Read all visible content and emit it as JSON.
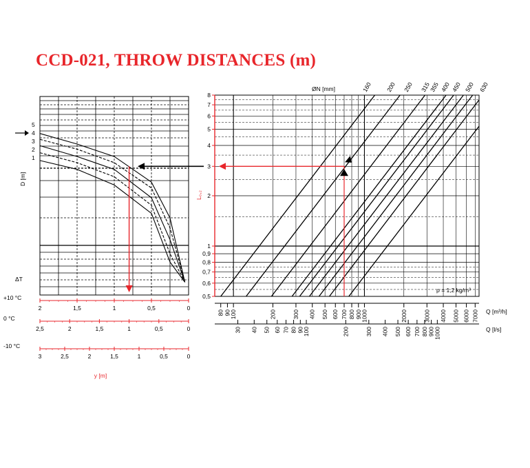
{
  "title": "CCD-021, THROW DISTANCES (m)",
  "colors": {
    "title": "#e8262b",
    "axis_red": "#e8262b",
    "grid": "#000000",
    "curves": "#000000"
  },
  "chart_data": [
    {
      "type": "line",
      "name_key": "left-panel",
      "ylabel": "D [m]",
      "yticks": [
        "5",
        "4",
        "3",
        "2",
        "1"
      ],
      "arrow_marker_y": "4",
      "dT_label": "ΔT",
      "scales": [
        {
          "label": "+10 °C",
          "ticks": [
            "2",
            "1,5",
            "1",
            "0,5",
            "0"
          ]
        },
        {
          "label": "0 °C",
          "ticks": [
            "2,5",
            "2",
            "1,5",
            "1",
            "0,5",
            "0"
          ]
        },
        {
          "label": "-10 °C",
          "ticks": [
            "3",
            "2,5",
            "2",
            "1,5",
            "1",
            "0,5",
            "0"
          ]
        }
      ],
      "xlabel": "y [m]",
      "series": [
        {
          "D": 5,
          "style": "solid",
          "y_at_x": [
            [
              2,
              5.0
            ],
            [
              1.5,
              4.3
            ],
            [
              1.0,
              3.6
            ],
            [
              0.5,
              2.5
            ],
            [
              0.25,
              1.5
            ],
            [
              0.05,
              0.6
            ]
          ]
        },
        {
          "D": 4,
          "style": "dashed",
          "y_at_x": [
            [
              2,
              4.6
            ],
            [
              1.5,
              4.0
            ],
            [
              1.0,
              3.3
            ],
            [
              0.5,
              2.3
            ],
            [
              0.25,
              1.3
            ],
            [
              0.05,
              0.6
            ]
          ]
        },
        {
          "D": 3,
          "style": "solid",
          "y_at_x": [
            [
              2,
              4.2
            ],
            [
              1.5,
              3.6
            ],
            [
              1.0,
              3.0
            ],
            [
              0.5,
              2.0
            ],
            [
              0.25,
              1.1
            ],
            [
              0.05,
              0.6
            ]
          ]
        },
        {
          "D": 2,
          "style": "dashed",
          "y_at_x": [
            [
              2,
              3.8
            ],
            [
              1.5,
              3.3
            ],
            [
              1.0,
              2.7
            ],
            [
              0.5,
              1.8
            ],
            [
              0.25,
              0.9
            ],
            [
              0.05,
              0.6
            ]
          ]
        },
        {
          "D": 1,
          "style": "solid",
          "y_at_x": [
            [
              2,
              3.4
            ],
            [
              1.5,
              3.0
            ],
            [
              1.0,
              2.4
            ],
            [
              0.5,
              1.6
            ],
            [
              0.25,
              0.8
            ],
            [
              0.05,
              0.6
            ]
          ]
        }
      ]
    },
    {
      "type": "line",
      "name_key": "right-panel",
      "ylabel": "L₀,₂",
      "yticks": [
        "8",
        "7",
        "6",
        "5",
        "4",
        "3",
        "2",
        "1",
        "0,9",
        "0,8",
        "0,7",
        "0,6",
        "0,5"
      ],
      "diam_label": "ØN [mm]",
      "diameters": [
        "160",
        "200",
        "250",
        "315",
        "355",
        "400",
        "450",
        "500",
        "630"
      ],
      "density_note": "ρ = 1,2 kg/m³",
      "q_m3h": {
        "label": "Q [m³/h]",
        "ticks": [
          "80",
          "90",
          "100",
          "200",
          "300",
          "400",
          "500",
          "600",
          "700",
          "800",
          "900",
          "1000",
          "2000",
          "3000",
          "4000",
          "5000",
          "6000",
          "7000"
        ]
      },
      "q_ls": {
        "label": "Q [l/s]",
        "ticks": [
          "30",
          "40",
          "50",
          "60",
          "70",
          "80",
          "90",
          "100",
          "200",
          "300",
          "400",
          "500",
          "600",
          "700",
          "800",
          "900",
          "1000"
        ]
      },
      "series": [
        {
          "name": "160",
          "L_at_Q": [
            [
              80,
              0.5
            ],
            [
              1200,
              8
            ]
          ]
        },
        {
          "name": "200",
          "L_at_Q": [
            [
              125,
              0.5
            ],
            [
              1870,
              8
            ]
          ]
        },
        {
          "name": "250",
          "L_at_Q": [
            [
              195,
              0.5
            ],
            [
              2900,
              8
            ]
          ]
        },
        {
          "name": "315",
          "L_at_Q": [
            [
              280,
              0.5
            ],
            [
              4200,
              8
            ]
          ]
        },
        {
          "name": "355",
          "L_at_Q": [
            [
              320,
              0.5
            ],
            [
              4800,
              8
            ]
          ]
        },
        {
          "name": "400",
          "L_at_Q": [
            [
              380,
              0.5
            ],
            [
              5700,
              8
            ]
          ]
        },
        {
          "name": "450",
          "L_at_Q": [
            [
              450,
              0.5
            ],
            [
              6700,
              8
            ]
          ]
        },
        {
          "name": "500",
          "L_at_Q": [
            [
              540,
              0.5
            ],
            [
              8000,
              8
            ]
          ]
        },
        {
          "name": "630",
          "L_at_Q": [
            [
              760,
              0.5
            ],
            [
              11400,
              8
            ]
          ]
        }
      ],
      "example": {
        "Q_m3h": 700,
        "L": 3,
        "y_m": 0.8
      }
    }
  ]
}
